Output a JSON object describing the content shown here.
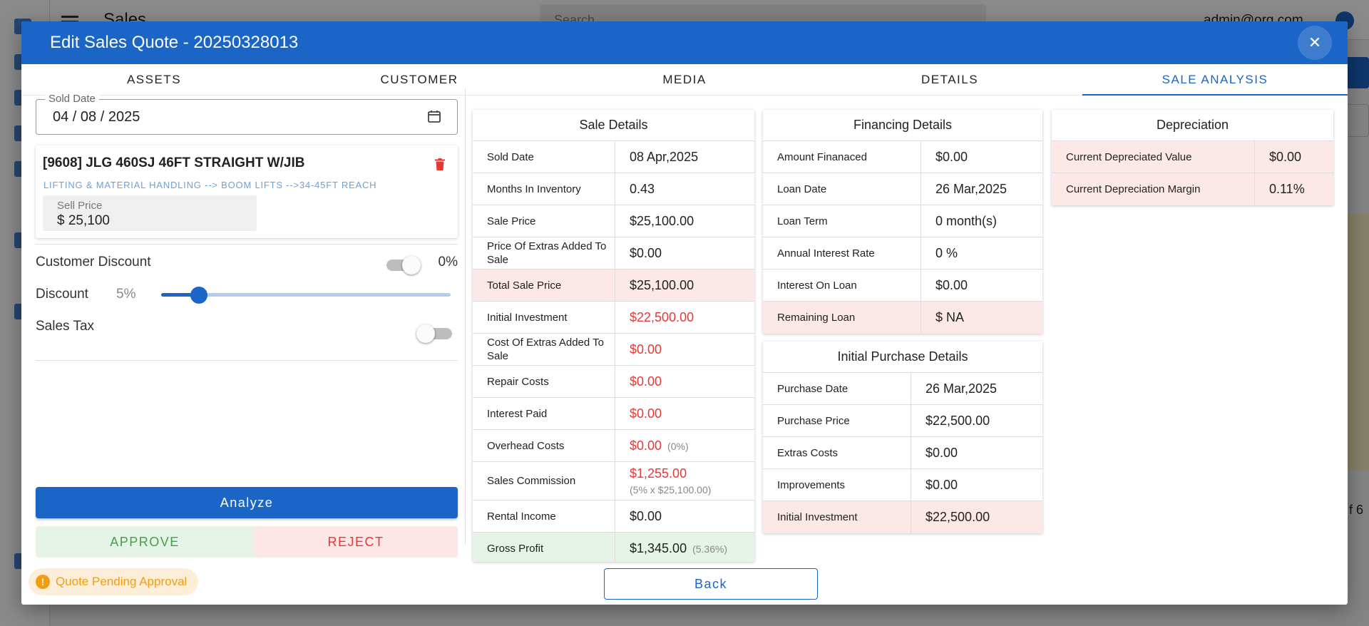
{
  "background": {
    "app_title": "Sales",
    "search_placeholder": "Search",
    "user_email": "admin@org.com",
    "page_of": "f 6"
  },
  "dialog": {
    "title": "Edit Sales Quote - 20250328013",
    "close_icon": "close-icon"
  },
  "tabs": [
    {
      "label": "ASSETS"
    },
    {
      "label": "CUSTOMER"
    },
    {
      "label": "MEDIA"
    },
    {
      "label": "DETAILS"
    },
    {
      "label": "SALE ANALYSIS",
      "active": true
    }
  ],
  "left": {
    "sold_date_label": "Sold Date",
    "sold_date_value": "04 / 08 / 2025",
    "asset": {
      "name": "[9608] JLG 460SJ 46FT STRAIGHT W/JIB",
      "category": "LIFTING & MATERIAL HANDLING --> BOOM LIFTS -->34-45FT REACH",
      "sell_price_label": "Sell Price",
      "sell_price_value": "$ 25,100"
    },
    "customer_discount_label": "Customer Discount",
    "customer_discount_pct": "0%",
    "customer_discount_enabled": false,
    "discount_label": "Discount",
    "discount_pct": "5%",
    "discount_slider_fraction": 0.13,
    "sales_tax_label": "Sales Tax",
    "sales_tax_enabled": false,
    "analyze_label": "Analyze",
    "approve_label": "APPROVE",
    "reject_label": "REJECT",
    "status_chip": "Quote Pending Approval"
  },
  "sale_details": {
    "title": "Sale Details",
    "rows": [
      {
        "label": "Sold Date",
        "value": "08 Apr,2025"
      },
      {
        "label": "Months In Inventory",
        "value": "0.43"
      },
      {
        "label": "Sale Price",
        "value": "$25,100.00"
      },
      {
        "label": "Price Of Extras Added To Sale",
        "value": "$0.00"
      },
      {
        "label": "Total Sale Price",
        "value": "$25,100.00",
        "highlight": "pink"
      },
      {
        "label": "Initial Investment",
        "value": "$22,500.00",
        "red": true
      },
      {
        "label": "Cost Of Extras Added To Sale",
        "value": "$0.00",
        "red": true
      },
      {
        "label": "Repair Costs",
        "value": "$0.00",
        "red": true
      },
      {
        "label": "Interest Paid",
        "value": "$0.00",
        "red": true
      },
      {
        "label": "Overhead Costs",
        "value": "$0.00",
        "red": true,
        "note": "(0%)"
      },
      {
        "label": "Sales Commission",
        "value": "$1,255.00",
        "red": true,
        "subline": "(5% x $25,100.00)"
      },
      {
        "label": "Rental Income",
        "value": "$0.00"
      },
      {
        "label": "Gross Profit",
        "value": "$1,345.00",
        "note": "(5.36%)",
        "highlight": "green"
      }
    ]
  },
  "financing_details": {
    "title": "Financing Details",
    "rows": [
      {
        "label": "Amount Finanaced",
        "value": "$0.00"
      },
      {
        "label": "Loan Date",
        "value": "26 Mar,2025"
      },
      {
        "label": "Loan Term",
        "value": "0 month(s)"
      },
      {
        "label": "Annual Interest Rate",
        "value": "0 %"
      },
      {
        "label": "Interest On Loan",
        "value": "$0.00"
      },
      {
        "label": "Remaining Loan",
        "value": "$ NA",
        "highlight": "pink"
      }
    ]
  },
  "initial_purchase": {
    "title": "Initial Purchase Details",
    "rows": [
      {
        "label": "Purchase Date",
        "value": "26 Mar,2025"
      },
      {
        "label": "Purchase Price",
        "value": "$22,500.00"
      },
      {
        "label": "Extras Costs",
        "value": "$0.00"
      },
      {
        "label": "Improvements",
        "value": "$0.00"
      },
      {
        "label": "Initial Investment",
        "value": "$22,500.00",
        "highlight": "pink"
      }
    ]
  },
  "depreciation": {
    "title": "Depreciation",
    "rows": [
      {
        "label": "Current Depreciated Value",
        "value": "$0.00",
        "highlight": "pink"
      },
      {
        "label": "Current Depreciation Margin",
        "value": "0.11%",
        "highlight": "pink"
      }
    ]
  },
  "back_label": "Back",
  "colors": {
    "primary": "#1a65c5",
    "danger": "#e53935",
    "success": "#43a047",
    "warning": "#f39c12",
    "pink_row": "#fde8e8",
    "green_row": "#e6f3e7"
  }
}
